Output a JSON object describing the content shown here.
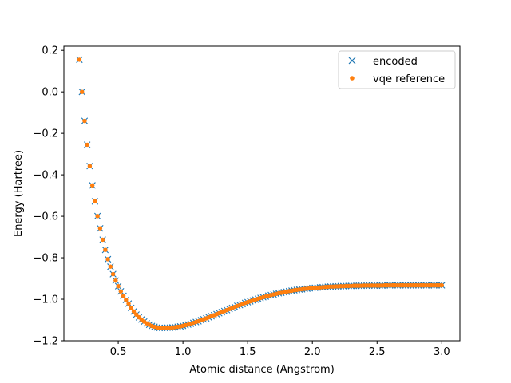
{
  "chart_data": {
    "type": "scatter",
    "title": "",
    "xlabel": "Atomic distance (Angstrom)",
    "ylabel": "Energy (Hartree)",
    "xlim": [
      0.08,
      3.14
    ],
    "ylim": [
      -1.2,
      0.22
    ],
    "xticks": [
      0.5,
      1.0,
      1.5,
      2.0,
      2.5,
      3.0
    ],
    "xtick_labels": [
      "0.5",
      "1.0",
      "1.5",
      "2.0",
      "2.5",
      "3.0"
    ],
    "yticks": [
      0.2,
      0.0,
      -0.2,
      -0.4,
      -0.6,
      -0.8,
      -1.0,
      -1.2
    ],
    "ytick_labels": [
      "0.2",
      "0.0",
      "−0.2",
      "−0.4",
      "−0.6",
      "−0.8",
      "−1.0",
      "−1.2"
    ],
    "grid": false,
    "legend_position": "top-right",
    "series": [
      {
        "name": "encoded",
        "marker": "x",
        "color": "#1f77b4"
      },
      {
        "name": "vqe reference",
        "marker": "dot",
        "color": "#ff7f0e"
      }
    ],
    "x": [
      0.2,
      0.22,
      0.24,
      0.26,
      0.28,
      0.3,
      0.32,
      0.34,
      0.36,
      0.38,
      0.4,
      0.42,
      0.44,
      0.46,
      0.48,
      0.5,
      0.52,
      0.54,
      0.56,
      0.58,
      0.6,
      0.62,
      0.64,
      0.66,
      0.68,
      0.7,
      0.72,
      0.74,
      0.76,
      0.78,
      0.8,
      0.82,
      0.84,
      0.86,
      0.88,
      0.9,
      0.92,
      0.94,
      0.96,
      0.98,
      1.0,
      1.02,
      1.04,
      1.06,
      1.08,
      1.1,
      1.12,
      1.14,
      1.16,
      1.18,
      1.2,
      1.22,
      1.24,
      1.26,
      1.28,
      1.3,
      1.32,
      1.34,
      1.36,
      1.38,
      1.4,
      1.42,
      1.44,
      1.46,
      1.48,
      1.5,
      1.52,
      1.54,
      1.56,
      1.58,
      1.6,
      1.62,
      1.64,
      1.66,
      1.68,
      1.7,
      1.72,
      1.74,
      1.76,
      1.78,
      1.8,
      1.82,
      1.84,
      1.86,
      1.88,
      1.9,
      1.92,
      1.94,
      1.96,
      1.98,
      2.0,
      2.02,
      2.04,
      2.06,
      2.08,
      2.1,
      2.12,
      2.14,
      2.16,
      2.18,
      2.2,
      2.22,
      2.24,
      2.26,
      2.28,
      2.3,
      2.32,
      2.34,
      2.36,
      2.38,
      2.4,
      2.42,
      2.44,
      2.46,
      2.48,
      2.5,
      2.52,
      2.54,
      2.56,
      2.58,
      2.6,
      2.62,
      2.64,
      2.66,
      2.68,
      2.7,
      2.72,
      2.74,
      2.76,
      2.78,
      2.8,
      2.82,
      2.84,
      2.86,
      2.88,
      2.9,
      2.92,
      2.94,
      2.96,
      2.98,
      3.0
    ],
    "y": [
      0.155,
      0.0,
      -0.14,
      -0.255,
      -0.358,
      -0.451,
      -0.528,
      -0.599,
      -0.658,
      -0.713,
      -0.762,
      -0.807,
      -0.843,
      -0.879,
      -0.91,
      -0.937,
      -0.962,
      -0.984,
      -1.003,
      -1.021,
      -1.042,
      -1.059,
      -1.074,
      -1.087,
      -1.098,
      -1.108,
      -1.116,
      -1.123,
      -1.129,
      -1.133,
      -1.136,
      -1.138,
      -1.138,
      -1.138,
      -1.137,
      -1.137,
      -1.136,
      -1.135,
      -1.133,
      -1.131,
      -1.128,
      -1.125,
      -1.122,
      -1.118,
      -1.114,
      -1.11,
      -1.106,
      -1.101,
      -1.097,
      -1.092,
      -1.087,
      -1.082,
      -1.077,
      -1.072,
      -1.067,
      -1.062,
      -1.057,
      -1.052,
      -1.047,
      -1.042,
      -1.037,
      -1.032,
      -1.028,
      -1.023,
      -1.018,
      -1.014,
      -1.01,
      -1.006,
      -1.002,
      -0.998,
      -0.994,
      -0.99,
      -0.987,
      -0.983,
      -0.98,
      -0.977,
      -0.974,
      -0.971,
      -0.969,
      -0.966,
      -0.964,
      -0.961,
      -0.959,
      -0.957,
      -0.955,
      -0.953,
      -0.952,
      -0.95,
      -0.949,
      -0.947,
      -0.946,
      -0.945,
      -0.944,
      -0.943,
      -0.942,
      -0.941,
      -0.94,
      -0.939,
      -0.939,
      -0.938,
      -0.938,
      -0.937,
      -0.937,
      -0.936,
      -0.936,
      -0.936,
      -0.935,
      -0.935,
      -0.935,
      -0.935,
      -0.934,
      -0.934,
      -0.934,
      -0.934,
      -0.934,
      -0.934,
      -0.934,
      -0.934,
      -0.933,
      -0.933,
      -0.933,
      -0.933,
      -0.933,
      -0.933,
      -0.933,
      -0.933,
      -0.933,
      -0.933,
      -0.933,
      -0.933,
      -0.933,
      -0.933,
      -0.933,
      -0.933,
      -0.933,
      -0.933,
      -0.933,
      -0.933,
      -0.933,
      -0.933,
      -0.933
    ]
  }
}
